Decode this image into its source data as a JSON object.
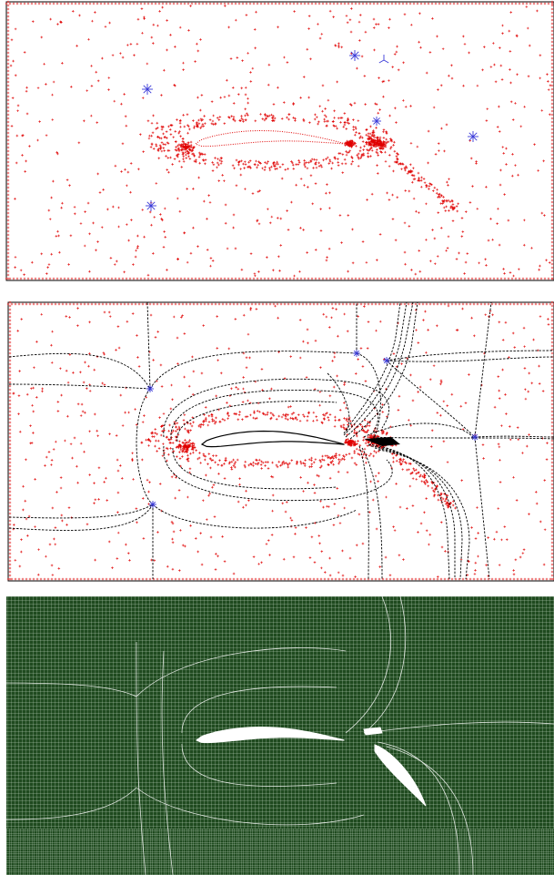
{
  "figure": {
    "colors": {
      "point": "#e00000",
      "singularity": "#3a3ad8",
      "streamline": "#000000",
      "mesh_fill": "#1f4a1f",
      "mesh_line": "#ffffff",
      "frame": "#000000",
      "body": "#ffffff"
    },
    "panels": [
      {
        "id": "point-cloud-with-singularities",
        "shows": [
          "background-points",
          "singularity-markers"
        ]
      },
      {
        "id": "cross-field-separatrices",
        "shows": [
          "background-points",
          "singularity-markers",
          "separatrix-lines"
        ]
      },
      {
        "id": "quad-mesh",
        "shows": [
          "structured-quad-mesh"
        ]
      }
    ]
  }
}
